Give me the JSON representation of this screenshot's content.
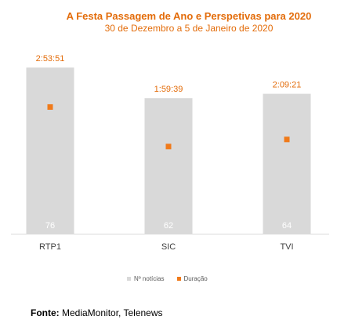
{
  "chart_data": {
    "type": "bar",
    "title": "A Festa Passagem de Ano e Perspetivas para 2020",
    "subtitle": "30 de Dezembro a 5 de Janeiro de 2020",
    "categories": [
      "RTP1",
      "SIC",
      "TVI"
    ],
    "series": [
      {
        "name": "Nº notícias",
        "type": "bar",
        "values": [
          76,
          62,
          64
        ],
        "color": "#D9D9D9"
      },
      {
        "name": "Duração",
        "type": "scatter",
        "values": [
          "2:53:51",
          "1:59:39",
          "2:09:21"
        ],
        "values_seconds": [
          10431,
          7179,
          7761
        ],
        "color": "#F07A1A"
      }
    ],
    "bar_ylim": [
      0,
      80
    ],
    "duration_ylim_seconds": [
      0,
      14400
    ],
    "legend": "bottom",
    "grid": false
  },
  "source": {
    "label": "Fonte:",
    "text": "MediaMonitor, Telenews"
  }
}
